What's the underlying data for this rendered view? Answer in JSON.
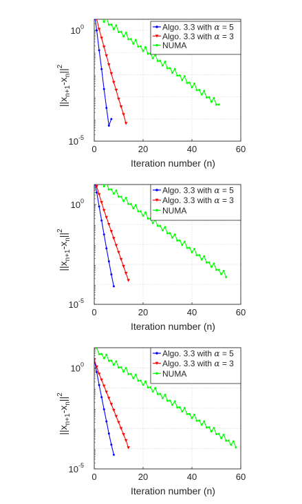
{
  "chart_data": [
    {
      "type": "line",
      "xlabel": "Iteration number (n)",
      "ylabel": "||x_{n+1}-x_n||^2",
      "ylabel_parts": {
        "base": "||x",
        "sub1": "n+1",
        "mid": "-x",
        "sub2": "n",
        "tail": "||",
        "sup": "2"
      },
      "xlim": [
        0,
        60
      ],
      "ylim_exp": [
        -5,
        0.5
      ],
      "yscale": "log",
      "grid": true,
      "xticks": [
        "0",
        "20",
        "40",
        "60"
      ],
      "yticks": [
        {
          "base": "10",
          "exp": "0"
        },
        {
          "base": "10",
          "exp": "-5"
        }
      ],
      "legend_position": "top-right",
      "series": [
        {
          "name_prefix": "Algo. 3.3 with ",
          "name_symbol": "α",
          "name_suffix": " = 5",
          "color": "#0000ff",
          "marker": "dot",
          "x": [
            0,
            1,
            2,
            3,
            4,
            5,
            6,
            7
          ],
          "log10_y": [
            0.85,
            -0.0,
            -0.9,
            -1.75,
            -2.65,
            -3.5,
            -4.3,
            -4.0
          ]
        },
        {
          "name_prefix": "Algo. 3.3 with ",
          "name_symbol": "α",
          "name_suffix": " = 3",
          "color": "#ff0000",
          "marker": "triangle",
          "x": [
            0,
            1,
            2,
            3,
            4,
            5,
            6,
            7,
            8,
            9,
            10,
            11,
            12,
            13
          ],
          "log10_y": [
            0.85,
            0.5,
            0.05,
            -0.35,
            -0.75,
            -1.15,
            -1.55,
            -1.95,
            -2.35,
            -2.7,
            -3.1,
            -3.45,
            -3.8,
            -4.2
          ]
        },
        {
          "name": "NUMA",
          "color": "#00ff00",
          "marker": "dot",
          "x_start": 1,
          "x_end": 51,
          "log10_start": 0.7,
          "log10_end": -3.4,
          "wiggle": 0.18,
          "period": 4
        }
      ]
    },
    {
      "type": "line",
      "xlabel": "Iteration number (n)",
      "ylabel": "||x_{n+1}-x_n||^2",
      "ylabel_parts": {
        "base": "||x",
        "sub1": "n+1",
        "mid": "-x",
        "sub2": "n",
        "tail": "||",
        "sup": "2"
      },
      "xlim": [
        0,
        60
      ],
      "ylim_exp": [
        -5,
        1
      ],
      "yscale": "log",
      "grid": true,
      "xticks": [
        "0",
        "20",
        "40",
        "60"
      ],
      "yticks": [
        {
          "base": "10",
          "exp": "0"
        },
        {
          "base": "10",
          "exp": "-5"
        }
      ],
      "legend_position": "top-right",
      "series": [
        {
          "name_prefix": "Algo. 3.3 with ",
          "name_symbol": "α",
          "name_suffix": " = 5",
          "color": "#0000ff",
          "marker": "dot",
          "x": [
            0,
            1,
            2,
            3,
            4,
            5,
            6,
            7,
            8
          ],
          "log10_y": [
            1.3,
            0.6,
            -0.1,
            -0.8,
            -1.5,
            -2.2,
            -2.85,
            -3.5,
            -4.1
          ]
        },
        {
          "name_prefix": "Algo. 3.3 with ",
          "name_symbol": "α",
          "name_suffix": " = 3",
          "color": "#ff0000",
          "marker": "triangle",
          "x": [
            0,
            1,
            2,
            3,
            4,
            5,
            6,
            7,
            8,
            9,
            10,
            11,
            12,
            13,
            14
          ],
          "log10_y": [
            1.3,
            0.9,
            0.5,
            0.1,
            -0.3,
            -0.65,
            -1.0,
            -1.35,
            -1.7,
            -2.05,
            -2.4,
            -2.75,
            -3.1,
            -3.45,
            -3.8
          ]
        },
        {
          "name": "NUMA",
          "color": "#00ff00",
          "marker": "dot",
          "x_start": 1,
          "x_end": 54,
          "log10_start": 1.25,
          "log10_end": -3.6,
          "wiggle": 0.18,
          "period": 4
        }
      ]
    },
    {
      "type": "line",
      "xlabel": "Iteration number (n)",
      "ylabel": "||x_{n+1}-x_n||^2",
      "ylabel_parts": {
        "base": "||x",
        "sub1": "n+1",
        "mid": "-x",
        "sub2": "n",
        "tail": "||",
        "sup": "2"
      },
      "xlim": [
        0,
        60
      ],
      "ylim_exp": [
        -5,
        1
      ],
      "yscale": "log",
      "grid": true,
      "xticks": [
        "0",
        "20",
        "40",
        "60"
      ],
      "yticks": [
        {
          "base": "10",
          "exp": "0"
        },
        {
          "base": "10",
          "exp": "-5"
        }
      ],
      "legend_position": "top-right",
      "series": [
        {
          "name_prefix": "Algo. 3.3 with ",
          "name_symbol": "α",
          "name_suffix": " = 5",
          "color": "#0000ff",
          "marker": "dot",
          "x": [
            0,
            1,
            2,
            3,
            4,
            5,
            6,
            7,
            8
          ],
          "log10_y": [
            0.4,
            -0.2,
            -0.85,
            -1.45,
            -2.05,
            -2.65,
            -3.25,
            -3.8,
            -4.3
          ]
        },
        {
          "name_prefix": "Algo. 3.3 with ",
          "name_symbol": "α",
          "name_suffix": " = 3",
          "color": "#ff0000",
          "marker": "triangle",
          "x": [
            0,
            1,
            2,
            3,
            4,
            5,
            6,
            7,
            8,
            9,
            10,
            11,
            12,
            13,
            14
          ],
          "log10_y": [
            0.4,
            0.05,
            -0.3,
            -0.6,
            -0.9,
            -1.2,
            -1.5,
            -1.8,
            -2.1,
            -2.4,
            -2.7,
            -3.0,
            -3.3,
            -3.6,
            -3.95
          ]
        },
        {
          "name": "NUMA",
          "color": "#00ff00",
          "marker": "dot",
          "x_start": 1,
          "x_end": 58,
          "log10_start": 0.8,
          "log10_end": -3.9,
          "wiggle": 0.18,
          "period": 4
        }
      ]
    }
  ]
}
